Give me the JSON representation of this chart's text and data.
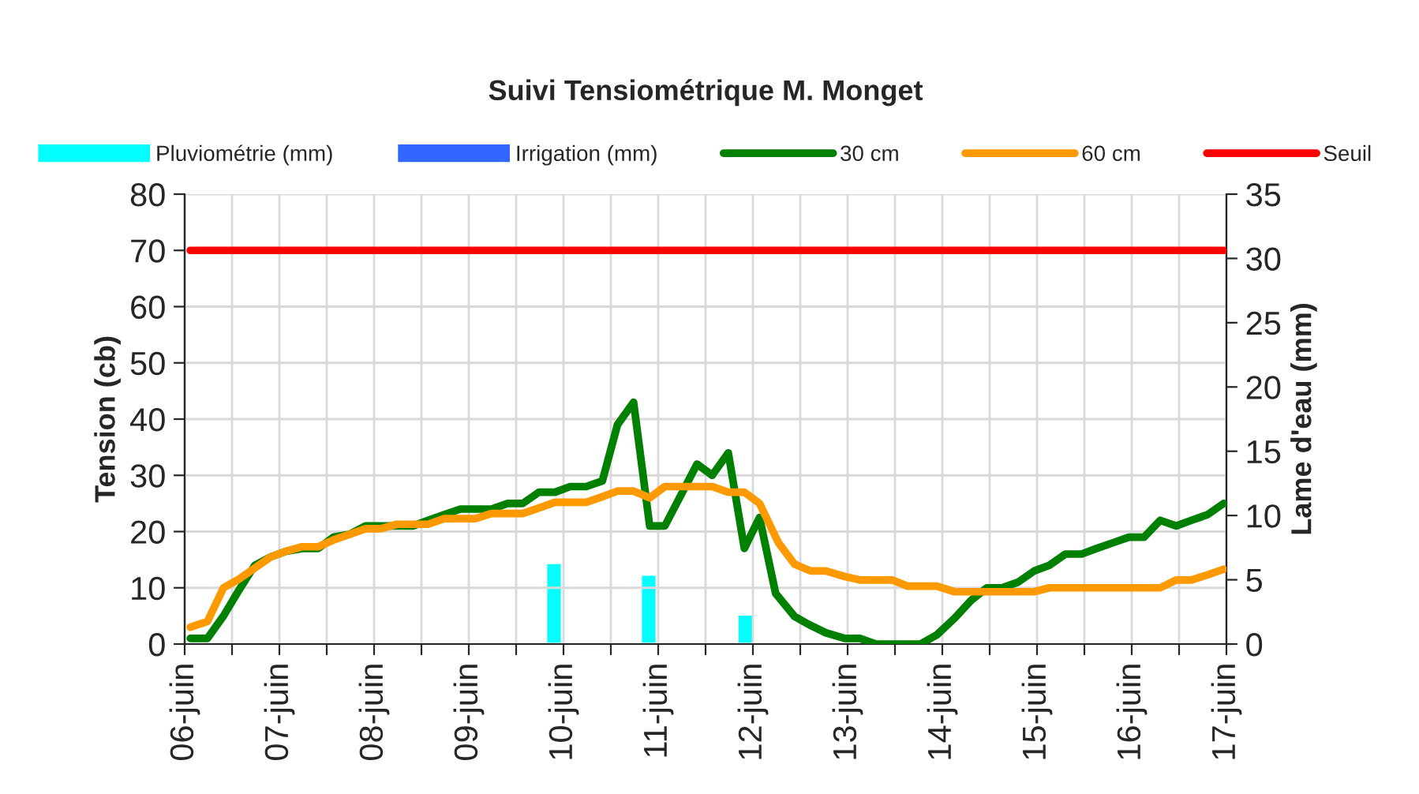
{
  "chart_data": {
    "type": "line",
    "title": "Suivi Tensiométrique M. Monget",
    "ylabel": "Tension (cb)",
    "y2label": "Lame d'eau (mm)",
    "xlim": [
      6,
      17
    ],
    "xticks": [
      {
        "value": 6,
        "label": "06-juin"
      },
      {
        "value": 6.5,
        "label": null
      },
      {
        "value": 7,
        "label": "07-juin"
      },
      {
        "value": 7.5,
        "label": null
      },
      {
        "value": 8,
        "label": "08-juin"
      },
      {
        "value": 8.5,
        "label": null
      },
      {
        "value": 9,
        "label": "09-juin"
      },
      {
        "value": 9.5,
        "label": null
      },
      {
        "value": 10,
        "label": "10-juin"
      },
      {
        "value": 10.5,
        "label": null
      },
      {
        "value": 11,
        "label": "11-juin"
      },
      {
        "value": 11.5,
        "label": null
      },
      {
        "value": 12,
        "label": "12-juin"
      },
      {
        "value": 12.5,
        "label": null
      },
      {
        "value": 13,
        "label": "13-juin"
      },
      {
        "value": 13.5,
        "label": null
      },
      {
        "value": 14,
        "label": "14-juin"
      },
      {
        "value": 14.5,
        "label": null
      },
      {
        "value": 15,
        "label": "15-juin"
      },
      {
        "value": 15.5,
        "label": null
      },
      {
        "value": 16,
        "label": "16-juin"
      },
      {
        "value": 16.5,
        "label": null
      },
      {
        "value": 17,
        "label": "17-juin"
      }
    ],
    "ylim": [
      0,
      80
    ],
    "yticks": [
      0,
      10,
      20,
      30,
      40,
      50,
      60,
      70,
      80
    ],
    "y2lim": [
      0,
      35
    ],
    "y2ticks": [
      0,
      5,
      10,
      15,
      20,
      25,
      30,
      35
    ],
    "grid": true,
    "legend": "top",
    "series": [
      {
        "name": "Pluviométrie (mm)",
        "type": "bar",
        "axis": "y2",
        "color": "#00ffff",
        "x": [
          9.9,
          10.9,
          11.92
        ],
        "values": [
          6.3,
          5.4,
          2.3
        ]
      },
      {
        "name": "Irrigation (mm)",
        "type": "bar",
        "axis": "y2",
        "color": "#3366ff"
      },
      {
        "name": "30 cm",
        "color": "#008000",
        "x": [
          6.06,
          6.24,
          6.41,
          6.57,
          6.74,
          6.91,
          7.07,
          7.24,
          7.41,
          7.57,
          7.74,
          7.91,
          8.07,
          8.24,
          8.41,
          8.57,
          8.74,
          8.91,
          9.07,
          9.24,
          9.41,
          9.57,
          9.74,
          9.91,
          10.07,
          10.24,
          10.41,
          10.57,
          10.74,
          10.91,
          11.07,
          11.24,
          11.41,
          11.57,
          11.74,
          11.91,
          12.07,
          12.24,
          12.44,
          12.61,
          12.77,
          12.97,
          13.13,
          13.3,
          13.47,
          13.63,
          13.77,
          13.94,
          14.13,
          14.3,
          14.47,
          14.63,
          14.8,
          14.97,
          15.13,
          15.3,
          15.47,
          15.63,
          15.8,
          15.97,
          16.13,
          16.3,
          16.47,
          16.63,
          16.8,
          16.97
        ],
        "values": [
          1,
          1,
          5,
          9.5,
          14,
          15.5,
          16.5,
          17,
          17,
          19,
          19.5,
          21,
          21,
          21,
          21,
          22,
          23,
          24,
          24,
          24,
          25,
          25,
          27,
          27,
          28,
          28,
          29,
          39,
          43,
          21,
          21,
          26.5,
          32,
          30,
          34,
          17,
          22.5,
          9,
          4.9,
          3.3,
          2,
          1,
          1,
          0,
          0,
          0,
          0,
          1.6,
          4.6,
          7.7,
          10,
          10,
          11,
          13,
          14,
          16,
          16,
          17,
          18,
          19,
          19,
          22,
          21,
          22,
          23,
          25
        ]
      },
      {
        "name": "60 cm",
        "color": "#ff9900",
        "x": [
          6.06,
          6.24,
          6.41,
          6.57,
          6.74,
          6.91,
          7.07,
          7.24,
          7.41,
          7.57,
          7.74,
          7.91,
          8.07,
          8.24,
          8.41,
          8.57,
          8.74,
          8.91,
          9.07,
          9.24,
          9.41,
          9.57,
          9.74,
          9.91,
          10.07,
          10.24,
          10.41,
          10.57,
          10.74,
          10.91,
          11.07,
          11.24,
          11.41,
          11.57,
          11.74,
          11.91,
          12.07,
          12.27,
          12.44,
          12.61,
          12.77,
          12.97,
          13.13,
          13.3,
          13.47,
          13.63,
          13.77,
          13.94,
          14.13,
          14.3,
          14.47,
          14.63,
          14.8,
          14.97,
          15.13,
          15.3,
          15.47,
          15.63,
          15.8,
          15.97,
          16.13,
          16.3,
          16.47,
          16.63,
          16.8,
          16.97
        ],
        "values": [
          3,
          4,
          10,
          11.5,
          13.5,
          15.5,
          16.5,
          17.3,
          17.3,
          18.5,
          19.5,
          20.5,
          20.5,
          21.3,
          21.3,
          21.3,
          22.3,
          22.3,
          22.3,
          23.2,
          23.2,
          23.2,
          24.2,
          25.2,
          25.2,
          25.2,
          26.2,
          27.2,
          27.2,
          26,
          28,
          28,
          28,
          28,
          27,
          27,
          25,
          18,
          14.2,
          13,
          13,
          12,
          11.4,
          11.4,
          11.4,
          10.3,
          10.3,
          10.3,
          9.3,
          9.3,
          9.3,
          9.3,
          9.3,
          9.3,
          10,
          10,
          10,
          10,
          10,
          10,
          10,
          10,
          11.4,
          11.4,
          12.3,
          13.3
        ]
      },
      {
        "name": "Seuil",
        "color": "#ff0000",
        "x": [
          6.06,
          16.97
        ],
        "values": [
          70,
          70
        ]
      }
    ]
  }
}
